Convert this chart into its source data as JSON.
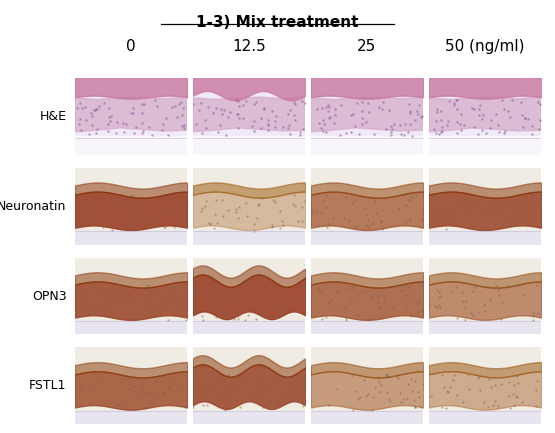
{
  "title": "1-3) Mix treatment",
  "col_labels": [
    "0",
    "12.5",
    "25",
    "50 (ng/ml)"
  ],
  "row_labels": [
    "H&E",
    "Neuronatin",
    "OPN3",
    "FSTL1"
  ],
  "background_color": "#ffffff",
  "title_fontsize": 11,
  "col_label_fontsize": 11,
  "row_label_fontsize": 9,
  "figure_size": [
    5.55,
    4.33
  ],
  "dpi": 100,
  "cell_images": [
    [
      {
        "top_color": "#c87890",
        "mid_color": "#c890b8",
        "bot_color": "#e8e0f0",
        "bg": "#f8f8ff"
      },
      {
        "top_color": "#d898a8",
        "mid_color": "#d4a8cc",
        "bot_color": "#e8e4f4",
        "bg": "#faf8ff"
      },
      {
        "top_color": "#c87890",
        "mid_color": "#b880a8",
        "bot_color": "#e0d8ec",
        "bg": "#f5f2fa"
      },
      {
        "top_color": "#d890a0",
        "mid_color": "#c890b8",
        "bot_color": "#e8e0f0",
        "bg": "#faf8ff"
      }
    ],
    [
      {
        "top_color": "#b87030",
        "mid_color": "#c07838",
        "bot_color": "#d8c0a0",
        "bg": "#f0e8d8"
      },
      {
        "top_color": "#e0d0b8",
        "mid_color": "#c89060",
        "bot_color": "#dcc8a8",
        "bg": "#f8f4ec"
      },
      {
        "top_color": "#c07838",
        "mid_color": "#b87030",
        "bot_color": "#d8c0a0",
        "bg": "#f0e8d8"
      },
      {
        "top_color": "#b87030",
        "mid_color": "#c07838",
        "bot_color": "#d0b890",
        "bg": "#eee4d4"
      }
    ],
    [
      {
        "top_color": "#b06820",
        "mid_color": "#a86018",
        "bot_color": "#d4b888",
        "bg": "#ece4d0"
      },
      {
        "top_color": "#c07828",
        "mid_color": "#c08030",
        "bot_color": "#d8c098",
        "bg": "#f0e8d8"
      },
      {
        "top_color": "#b07028",
        "mid_color": "#a86820",
        "bot_color": "#d0b880",
        "bg": "#e8e0d0"
      },
      {
        "top_color": "#a86018",
        "mid_color": "#985810",
        "bot_color": "#ccb078",
        "bg": "#e4dcc8"
      }
    ],
    [
      {
        "top_color": "#b07028",
        "mid_color": "#a86820",
        "bot_color": "#cdb882",
        "bg": "#e8e4d4"
      },
      {
        "top_color": "#c08030",
        "mid_color": "#b87028",
        "bot_color": "#d4bc90",
        "bg": "#ece8d8"
      },
      {
        "top_color": "#a86820",
        "mid_color": "#a07020",
        "bot_color": "#c8b07a",
        "bg": "#e4e0d0"
      },
      {
        "top_color": "#a07020",
        "mid_color": "#986818",
        "bot_color": "#c4ac78",
        "bg": "#e0dcc8"
      }
    ]
  ]
}
